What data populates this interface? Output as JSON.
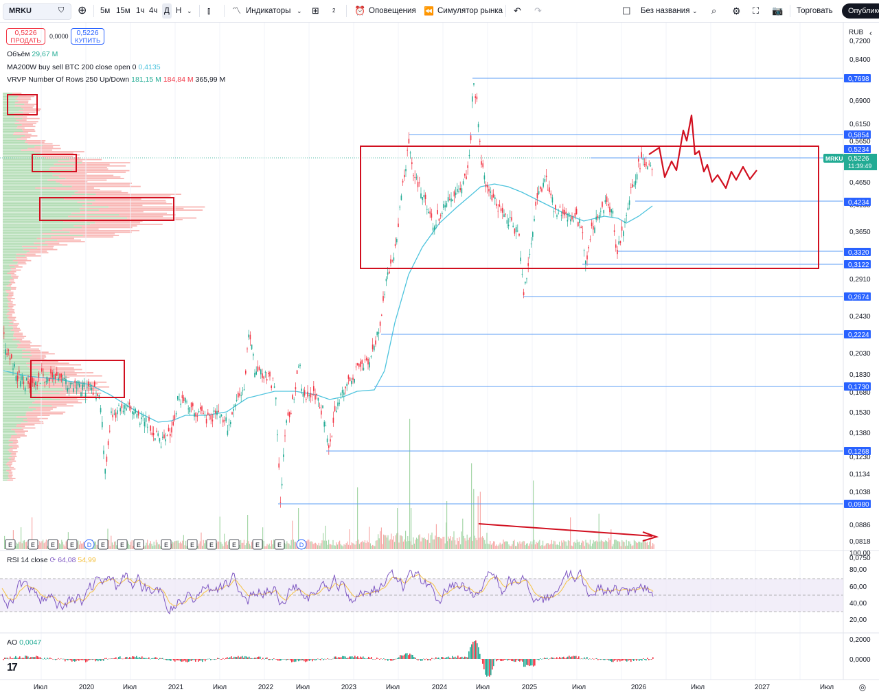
{
  "toolbar": {
    "symbol": "MRKU",
    "intervals": [
      "5м",
      "15м",
      "1ч",
      "4ч",
      "Д",
      "Н"
    ],
    "active_interval": "Д",
    "indicators_label": "Индикаторы",
    "layouts_badge": "2",
    "alerts_label": "Оповещения",
    "replay_label": "Симулятор рынка",
    "layout_name": "Без названия",
    "trade_label": "Торговать",
    "publish_label": "Опублико"
  },
  "trade_panel": {
    "sell_price": "0,5226",
    "sell_label": "ПРОДАТЬ",
    "spread": "0,0000",
    "buy_price": "0,5226",
    "buy_label": "КУПИТЬ"
  },
  "legend": {
    "volume_label": "Объём",
    "volume_value": "29,67 M",
    "ma_label": "MA200W buy sell BTC 200 close open 0",
    "ma_value": "0,4135",
    "vrvp_label": "VRVP Number Of Rows 250 Up/Down",
    "vrvp_up": "181,15 M",
    "vrvp_down": "184,84 M",
    "vrvp_total": "365,99 M"
  },
  "price_axis": {
    "currency": "RUB",
    "labels": [
      "0,7200",
      "0,8400",
      "0,6900",
      "0,6150",
      "0,5650",
      "0,4650",
      "0,4150",
      "0,3650",
      "0,2910",
      "0,2430",
      "0,2030",
      "0,1830",
      "0,1680",
      "0,1530",
      "0,1380",
      "0,1230",
      "0,1134",
      "0,1038",
      "0,0886",
      "0,0818",
      "0,0750"
    ],
    "level_badges": [
      "0,7698",
      "0,5854",
      "0,5234",
      "0,4234",
      "0,3320",
      "0,3122",
      "0,2674",
      "0,2224",
      "0,1730",
      "0,1268",
      "0,0980"
    ],
    "current_symbol": "MRKU",
    "current_price": "0,5226",
    "countdown": "11:39:49"
  },
  "rsi": {
    "label": "RSI 14 close",
    "value1": "64,08",
    "value2": "54,99",
    "axis": [
      "100,00",
      "80,00",
      "60,00",
      "40,00",
      "20,00"
    ]
  },
  "ao": {
    "label": "AO",
    "value": "0,0047",
    "axis": [
      "0,2000",
      "0,0000"
    ]
  },
  "time_axis": [
    "Июл",
    "2020",
    "Июл",
    "2021",
    "Июл",
    "2022",
    "Июл",
    "2023",
    "Июл",
    "2024",
    "Июл",
    "2025",
    "Июл",
    "2026",
    "Июл",
    "2027",
    "Июл"
  ],
  "events": [
    "E",
    "E",
    "E",
    "E",
    "D",
    "E",
    "E",
    "E",
    "E",
    "E",
    "E",
    "E",
    "E",
    "E",
    "D"
  ],
  "colors": {
    "up": "#22ab94",
    "down": "#f23645",
    "level_line": "#2962ff",
    "level_badge": "#2962ff",
    "annotation": "#d10f1f",
    "ma_line": "#4cc3dd",
    "rsi_line": "#7e57c2",
    "rsi_signal": "#f5c242"
  }
}
